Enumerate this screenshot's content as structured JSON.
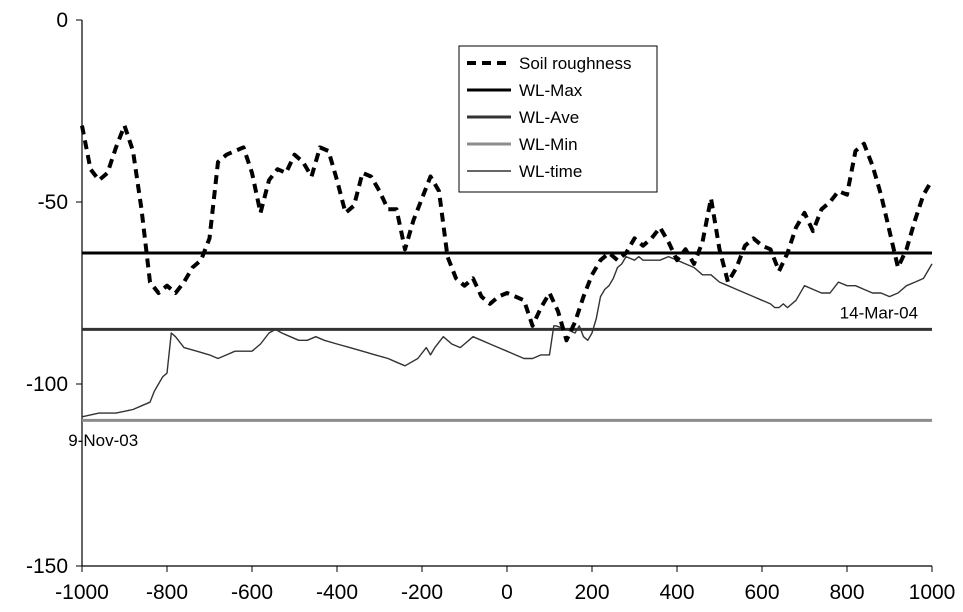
{
  "chart_data": {
    "type": "line",
    "title": "",
    "xlabel": "",
    "ylabel": "",
    "xlim": [
      -1000,
      1000
    ],
    "ylim": [
      -150,
      0
    ],
    "x_ticks": [
      "-1000",
      "-800",
      "-600",
      "-400",
      "-200",
      "0",
      "200",
      "400",
      "600",
      "800",
      "1000"
    ],
    "y_ticks": [
      "0",
      "-50",
      "-100",
      "-150"
    ],
    "grid": false,
    "legend_position": "top-right",
    "series": [
      {
        "name": "Soil roughness",
        "style": "dashed",
        "color": "#000000",
        "x": [
          -1000,
          -980,
          -960,
          -940,
          -920,
          -900,
          -880,
          -860,
          -840,
          -820,
          -800,
          -780,
          -760,
          -740,
          -720,
          -700,
          -680,
          -660,
          -640,
          -620,
          -600,
          -580,
          -560,
          -540,
          -520,
          -500,
          -480,
          -460,
          -440,
          -420,
          -400,
          -380,
          -360,
          -340,
          -320,
          -300,
          -280,
          -260,
          -240,
          -220,
          -200,
          -180,
          -160,
          -140,
          -120,
          -100,
          -80,
          -60,
          -40,
          -20,
          0,
          20,
          40,
          60,
          80,
          100,
          120,
          140,
          160,
          180,
          200,
          220,
          240,
          260,
          280,
          300,
          320,
          340,
          360,
          380,
          400,
          420,
          440,
          460,
          480,
          500,
          520,
          540,
          560,
          580,
          600,
          620,
          640,
          660,
          680,
          700,
          720,
          740,
          760,
          780,
          800,
          820,
          840,
          860,
          880,
          900,
          920,
          940,
          960,
          980,
          1000
        ],
        "y": [
          -29,
          -41,
          -44,
          -42,
          -35,
          -29,
          -36,
          -52,
          -72,
          -75,
          -73,
          -75,
          -72,
          -68,
          -66,
          -60,
          -39,
          -37,
          -36,
          -35,
          -42,
          -53,
          -44,
          -41,
          -42,
          -37,
          -39,
          -43,
          -35,
          -36,
          -44,
          -53,
          -51,
          -42,
          -43,
          -47,
          -52,
          -52,
          -63,
          -55,
          -49,
          -43,
          -47,
          -65,
          -71,
          -73,
          -71,
          -76,
          -78,
          -76,
          -75,
          -76,
          -77,
          -84,
          -79,
          -75,
          -80,
          -88,
          -83,
          -76,
          -70,
          -66,
          -64,
          -66,
          -64,
          -60,
          -62,
          -60,
          -57,
          -61,
          -66,
          -63,
          -67,
          -61,
          -49,
          -63,
          -72,
          -68,
          -62,
          -60,
          -62,
          -63,
          -69,
          -64,
          -57,
          -53,
          -58,
          -52,
          -50,
          -47,
          -48,
          -36,
          -34,
          -40,
          -48,
          -58,
          -68,
          -63,
          -55,
          -48,
          -44
        ]
      },
      {
        "name": "WL-Max",
        "style": "solid",
        "color": "#000000",
        "x": [
          -1000,
          1000
        ],
        "y": [
          -64,
          -64
        ]
      },
      {
        "name": "WL-Ave",
        "style": "solid",
        "color": "#333333",
        "x": [
          -1000,
          1000
        ],
        "y": [
          -85,
          -85
        ]
      },
      {
        "name": "WL-Min",
        "style": "solid",
        "color": "#8c8c8c",
        "x": [
          -1000,
          1000
        ],
        "y": [
          -110,
          -110
        ]
      },
      {
        "name": "WL-time",
        "style": "thin",
        "color": "#333333",
        "x": [
          -1000,
          -960,
          -920,
          -880,
          -860,
          -840,
          -830,
          -820,
          -810,
          -800,
          -790,
          -780,
          -760,
          -730,
          -700,
          -680,
          -660,
          -640,
          -620,
          -600,
          -580,
          -560,
          -545,
          -530,
          -510,
          -490,
          -470,
          -450,
          -430,
          -400,
          -370,
          -340,
          -310,
          -280,
          -260,
          -240,
          -210,
          -190,
          -180,
          -170,
          -150,
          -130,
          -110,
          -100,
          -80,
          -60,
          -40,
          -20,
          0,
          20,
          40,
          60,
          80,
          100,
          110,
          115,
          140,
          160,
          170,
          180,
          190,
          200,
          210,
          220,
          230,
          240,
          250,
          260,
          270,
          280,
          300,
          310,
          320,
          340,
          360,
          380,
          400,
          420,
          440,
          460,
          480,
          500,
          520,
          540,
          560,
          580,
          600,
          620,
          630,
          640,
          650,
          660,
          680,
          700,
          720,
          740,
          760,
          780,
          800,
          820,
          840,
          860,
          880,
          900,
          920,
          940,
          960,
          980,
          1000
        ],
        "y": [
          -109,
          -108,
          -108,
          -107,
          -106,
          -105,
          -102,
          -100,
          -98,
          -97,
          -86,
          -87,
          -90,
          -91,
          -92,
          -93,
          -92,
          -91,
          -91,
          -91,
          -89,
          -86,
          -85,
          -86,
          -87,
          -88,
          -88,
          -87,
          -88,
          -89,
          -90,
          -91,
          -92,
          -93,
          -94,
          -95,
          -93,
          -90,
          -92,
          -90,
          -87,
          -89,
          -90,
          -89,
          -87,
          -88,
          -89,
          -90,
          -91,
          -92,
          -93,
          -93,
          -92,
          -92,
          -84,
          -84,
          -85,
          -86,
          -84,
          -87,
          -88,
          -86,
          -82,
          -76,
          -74,
          -73,
          -71,
          -68,
          -67,
          -65,
          -66,
          -65,
          -66,
          -66,
          -66,
          -65,
          -66,
          -67,
          -68,
          -70,
          -70,
          -72,
          -73,
          -74,
          -75,
          -76,
          -77,
          -78,
          -79,
          -79,
          -78,
          -79,
          -77,
          -73,
          -74,
          -75,
          -75,
          -72,
          -73,
          -73,
          -74,
          -75,
          -75,
          -76,
          -75,
          -73,
          -72,
          -71,
          -67
        ]
      }
    ],
    "annotations": [
      {
        "text": "9-Nov-03",
        "x": -950,
        "y": -117
      },
      {
        "text": "14-Mar-04",
        "x": 875,
        "y": -82
      }
    ]
  }
}
